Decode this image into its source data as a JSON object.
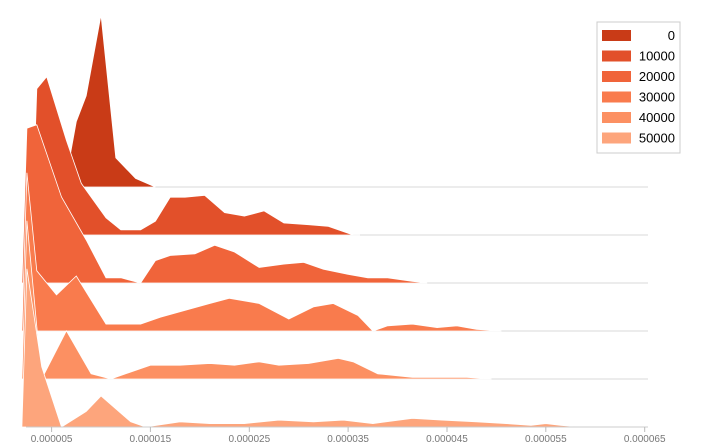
{
  "chart_data": {
    "type": "area",
    "layout": "ridgeline",
    "x_ticks": [
      "0.000005",
      "0.000015",
      "0.000025",
      "0.000035",
      "0.000045",
      "0.000055",
      "0.000065"
    ],
    "x_tick_values": [
      5e-06,
      1.5e-05,
      2.5e-05,
      3.5e-05,
      4.5e-05,
      5.5e-05,
      6.5e-05
    ],
    "xlim": [
      1.5e-06,
      7.1e-05
    ],
    "legend_position": "top-right",
    "grid": false,
    "series": [
      {
        "name": "0",
        "color": "#c93b17",
        "x": [
          6.3e-06,
          7.5e-06,
          8.5e-06,
          1e-05,
          1.15e-05,
          1.35e-05,
          1.55e-05
        ],
        "y": [
          0.0,
          0.38,
          0.53,
          1.0,
          0.17,
          0.05,
          0.0
        ]
      },
      {
        "name": "10000",
        "color": "#e2502a",
        "x": [
          3e-06,
          3.5e-06,
          4.5e-06,
          6.5e-06,
          8e-06,
          1.05e-05,
          1.2e-05,
          1.4e-05,
          1.55e-05,
          1.7e-05,
          1.85e-05,
          2.05e-05,
          2.25e-05,
          2.45e-05,
          2.65e-05,
          2.85e-05,
          3.1e-05,
          3.3e-05,
          3.55e-05,
          3.62e-05
        ],
        "y": [
          0.0,
          0.85,
          0.92,
          0.55,
          0.3,
          0.1,
          0.03,
          0.03,
          0.08,
          0.22,
          0.22,
          0.23,
          0.13,
          0.11,
          0.14,
          0.07,
          0.06,
          0.05,
          0.0,
          0.0
        ]
      },
      {
        "name": "20000",
        "color": "#f0643a",
        "x": [
          2e-06,
          2.5e-06,
          3.5e-06,
          6e-06,
          8.5e-06,
          1.05e-05,
          1.2e-05,
          1.4e-05,
          1.55e-05,
          1.7e-05,
          1.95e-05,
          2.15e-05,
          2.35e-05,
          2.6e-05,
          2.85e-05,
          3.05e-05,
          3.25e-05,
          3.5e-05,
          3.7e-05,
          3.9e-05,
          4.15e-05,
          4.3e-05
        ],
        "y": [
          0.0,
          0.9,
          0.92,
          0.5,
          0.25,
          0.03,
          0.03,
          0.0,
          0.13,
          0.16,
          0.17,
          0.22,
          0.18,
          0.09,
          0.11,
          0.12,
          0.08,
          0.05,
          0.03,
          0.03,
          0.01,
          0.0
        ]
      },
      {
        "name": "30000",
        "color": "#f97b4d",
        "x": [
          2e-06,
          2.5e-06,
          3.5e-06,
          5.5e-06,
          7.5e-06,
          1.05e-05,
          1.2e-05,
          1.4e-05,
          1.6e-05,
          1.85e-05,
          2.1e-05,
          2.3e-05,
          2.6e-05,
          2.9e-05,
          3.15e-05,
          3.35e-05,
          3.6e-05,
          3.75e-05,
          3.9e-05,
          4.15e-05,
          4.4e-05,
          4.6e-05,
          4.8e-05,
          5.05e-05
        ],
        "y": [
          0.0,
          0.92,
          0.35,
          0.21,
          0.32,
          0.04,
          0.04,
          0.04,
          0.08,
          0.12,
          0.16,
          0.19,
          0.16,
          0.07,
          0.14,
          0.16,
          0.09,
          0.0,
          0.03,
          0.04,
          0.02,
          0.03,
          0.01,
          0.0
        ]
      },
      {
        "name": "40000",
        "color": "#fc9062",
        "x": [
          2e-06,
          2.5e-06,
          4e-06,
          6.5e-06,
          9e-06,
          1.1e-05,
          1.25e-05,
          1.5e-05,
          1.8e-05,
          2.1e-05,
          2.35e-05,
          2.6e-05,
          2.8e-05,
          3.1e-05,
          3.4e-05,
          3.55e-05,
          3.8e-05,
          4.15e-05,
          4.5e-05,
          4.7e-05,
          4.95e-05
        ],
        "y": [
          0.0,
          0.92,
          0.0,
          0.28,
          0.03,
          0.0,
          0.03,
          0.08,
          0.08,
          0.09,
          0.08,
          0.1,
          0.08,
          0.09,
          0.12,
          0.1,
          0.03,
          0.01,
          0.01,
          0.01,
          0.0
        ]
      },
      {
        "name": "50000",
        "color": "#fda57c",
        "x": [
          2e-06,
          2.5e-06,
          4e-06,
          6e-06,
          8.5e-06,
          1e-05,
          1.3e-05,
          1.45e-05,
          1.8e-05,
          2.1e-05,
          2.45e-05,
          2.8e-05,
          3.15e-05,
          3.45e-05,
          3.75e-05,
          4.15e-05,
          4.45e-05,
          4.8e-05,
          5.1e-05,
          5.35e-05,
          5.5e-05,
          5.65e-05,
          5.85e-05
        ],
        "y": [
          0.0,
          0.92,
          0.35,
          0.0,
          0.09,
          0.18,
          0.03,
          0.0,
          0.03,
          0.02,
          0.02,
          0.04,
          0.03,
          0.04,
          0.02,
          0.05,
          0.04,
          0.03,
          0.02,
          0.01,
          0.02,
          0.01,
          0.0
        ]
      }
    ]
  }
}
